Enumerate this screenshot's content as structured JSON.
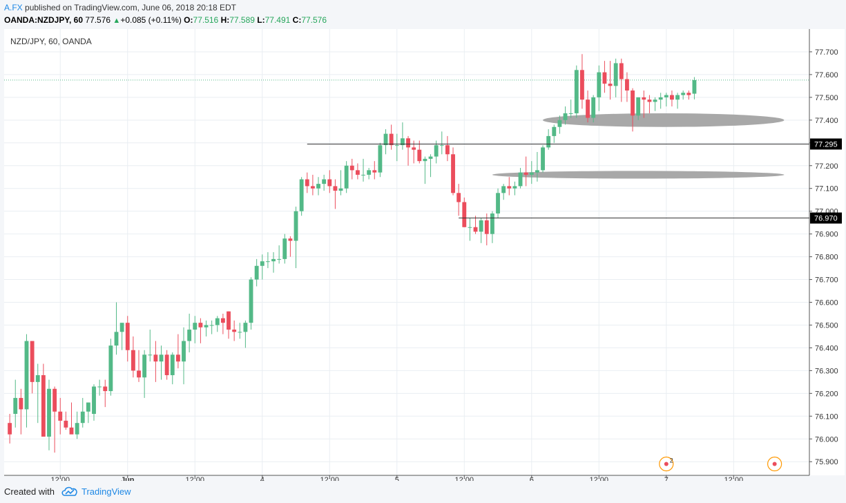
{
  "header": {
    "author": "A.FX",
    "published_text": "published on TradingView.com, June 06, 2018 20:18 EDT",
    "symbol": "OANDA:NZDJPY, 60",
    "last": "77.576",
    "up_icon": "triangle-up",
    "change": "+0.085 (+0.11%)",
    "o_label": "O:",
    "o_value": "77.516",
    "h_label": "H:",
    "h_value": "77.589",
    "l_label": "L:",
    "l_value": "77.491",
    "c_label": "C:",
    "c_value": "77.576"
  },
  "footer": {
    "created_with": "Created with",
    "brand": "TradingView",
    "logo_icon": "tradingview-cloud-icon"
  },
  "colors": {
    "up": "#53b987",
    "down": "#eb4d5c",
    "grid": "#e9eef2",
    "hline": "#333333",
    "zone": "#a8a8a8",
    "last_line": "#53b987",
    "marker": "#ff9800"
  },
  "chart_data": {
    "type": "candlestick",
    "title": "NZD/JPY, 60, OANDA",
    "ylim": [
      75.84,
      77.8
    ],
    "y_ticks": [
      75.9,
      76.0,
      76.1,
      76.2,
      76.3,
      76.4,
      76.5,
      76.6,
      76.7,
      76.8,
      76.9,
      77.0,
      77.1,
      77.2,
      77.3,
      77.4,
      77.5,
      77.6,
      77.7
    ],
    "y_tick_labels": [
      "75.900",
      "76.000",
      "76.100",
      "76.200",
      "76.300",
      "76.400",
      "76.500",
      "76.600",
      "76.700",
      "76.800",
      "76.900",
      "77.000",
      "77.100",
      "77.200",
      "77.300",
      "77.400",
      "77.500",
      "77.600",
      "77.700"
    ],
    "x_range": [
      -1,
      142.5
    ],
    "x_ticks": [
      {
        "i": 9,
        "label": "12:00",
        "bold": false
      },
      {
        "i": 21,
        "label": "Jun",
        "bold": true
      },
      {
        "i": 33,
        "label": "12:00",
        "bold": false
      },
      {
        "i": 45,
        "label": "4",
        "bold": false
      },
      {
        "i": 57,
        "label": "12:00",
        "bold": false
      },
      {
        "i": 69,
        "label": "5",
        "bold": false
      },
      {
        "i": 81,
        "label": "12:00",
        "bold": false
      },
      {
        "i": 93,
        "label": "6",
        "bold": false
      },
      {
        "i": 105,
        "label": "12:00",
        "bold": false
      },
      {
        "i": 117,
        "label": "7",
        "bold": false
      },
      {
        "i": 129,
        "label": "12:00",
        "bold": false
      }
    ],
    "candles": [
      [
        76.07,
        76.11,
        75.98,
        76.02
      ],
      [
        76.11,
        76.26,
        76.05,
        76.18
      ],
      [
        76.18,
        76.22,
        76.02,
        76.13
      ],
      [
        76.13,
        76.46,
        76.05,
        76.43
      ],
      [
        76.43,
        76.43,
        76.2,
        76.25
      ],
      [
        76.25,
        76.33,
        76.07,
        76.28
      ],
      [
        76.28,
        76.33,
        76.02,
        76.01
      ],
      [
        76.01,
        76.26,
        75.95,
        76.22
      ],
      [
        76.22,
        76.23,
        75.94,
        76.12
      ],
      [
        76.12,
        76.18,
        76.02,
        76.08
      ],
      [
        76.08,
        76.12,
        76.04,
        76.05
      ],
      [
        76.05,
        76.16,
        76.03,
        76.02
      ],
      [
        76.02,
        76.12,
        76.0,
        76.07
      ],
      [
        76.07,
        76.18,
        76.05,
        76.12
      ],
      [
        76.12,
        76.16,
        76.07,
        76.16
      ],
      [
        76.11,
        76.24,
        76.08,
        76.23
      ],
      [
        76.23,
        76.26,
        76.19,
        76.23
      ],
      [
        76.23,
        76.26,
        76.14,
        76.21
      ],
      [
        76.21,
        76.44,
        76.19,
        76.41
      ],
      [
        76.41,
        76.6,
        76.37,
        76.47
      ],
      [
        76.47,
        76.5,
        76.39,
        76.51
      ],
      [
        76.51,
        76.54,
        76.34,
        76.39
      ],
      [
        76.39,
        76.45,
        76.27,
        76.3
      ],
      [
        76.3,
        76.39,
        76.25,
        76.27
      ],
      [
        76.27,
        76.39,
        76.18,
        76.37
      ],
      [
        76.37,
        76.48,
        76.34,
        76.37
      ],
      [
        76.37,
        76.43,
        76.25,
        76.34
      ],
      [
        76.34,
        76.41,
        76.26,
        76.37
      ],
      [
        76.37,
        76.39,
        76.26,
        76.28
      ],
      [
        76.28,
        76.38,
        76.24,
        76.37
      ],
      [
        76.37,
        76.46,
        76.31,
        76.34
      ],
      [
        76.34,
        76.49,
        76.24,
        76.43
      ],
      [
        76.43,
        76.55,
        76.38,
        76.48
      ],
      [
        76.48,
        76.54,
        76.42,
        76.51
      ],
      [
        76.51,
        76.53,
        76.42,
        76.49
      ],
      [
        76.49,
        76.52,
        76.45,
        76.5
      ],
      [
        76.5,
        76.52,
        76.46,
        76.5
      ],
      [
        76.5,
        76.54,
        76.47,
        76.53
      ],
      [
        76.53,
        76.55,
        76.46,
        76.51
      ],
      [
        76.56,
        76.56,
        76.44,
        76.48
      ],
      [
        76.48,
        76.52,
        76.43,
        76.47
      ],
      [
        76.47,
        76.51,
        76.44,
        76.47
      ],
      [
        76.47,
        76.52,
        76.4,
        76.51
      ],
      [
        76.51,
        76.71,
        76.48,
        76.7
      ],
      [
        76.7,
        76.79,
        76.67,
        76.76
      ],
      [
        76.76,
        76.81,
        76.7,
        76.78
      ],
      [
        76.78,
        76.82,
        76.75,
        76.78
      ],
      [
        76.78,
        76.82,
        76.73,
        76.79
      ],
      [
        76.79,
        76.85,
        76.77,
        76.79
      ],
      [
        76.79,
        76.9,
        76.77,
        76.88
      ],
      [
        76.88,
        76.89,
        76.8,
        76.87
      ],
      [
        76.87,
        77.02,
        76.75,
        77.0
      ],
      [
        77.0,
        77.15,
        76.98,
        77.14
      ],
      [
        77.14,
        77.17,
        77.08,
        77.11
      ],
      [
        77.11,
        77.16,
        77.07,
        77.1
      ],
      [
        77.1,
        77.15,
        77.07,
        77.12
      ],
      [
        77.12,
        77.16,
        77.09,
        77.14
      ],
      [
        77.14,
        77.18,
        77.08,
        77.11
      ],
      [
        77.11,
        77.14,
        77.01,
        77.09
      ],
      [
        77.09,
        77.18,
        77.07,
        77.1
      ],
      [
        77.1,
        77.22,
        77.08,
        77.2
      ],
      [
        77.2,
        77.23,
        77.14,
        77.18
      ],
      [
        77.18,
        77.21,
        77.14,
        77.16
      ],
      [
        77.16,
        77.23,
        77.13,
        77.16
      ],
      [
        77.16,
        77.19,
        77.14,
        77.18
      ],
      [
        77.18,
        77.22,
        77.14,
        77.17
      ],
      [
        77.17,
        77.3,
        77.15,
        77.29
      ],
      [
        77.29,
        77.36,
        77.25,
        77.34
      ],
      [
        77.34,
        77.38,
        77.27,
        77.29
      ],
      [
        77.29,
        77.34,
        77.22,
        77.29
      ],
      [
        77.29,
        77.39,
        77.27,
        77.32
      ],
      [
        77.32,
        77.33,
        77.2,
        77.28
      ],
      [
        77.28,
        77.31,
        77.21,
        77.27
      ],
      [
        77.27,
        77.31,
        77.21,
        77.22
      ],
      [
        77.22,
        77.24,
        77.12,
        77.23
      ],
      [
        77.23,
        77.25,
        77.15,
        77.24
      ],
      [
        77.24,
        77.31,
        77.21,
        77.29
      ],
      [
        77.29,
        77.35,
        77.25,
        77.29
      ],
      [
        77.29,
        77.33,
        77.22,
        77.25
      ],
      [
        77.25,
        77.28,
        77.07,
        77.08
      ],
      [
        77.08,
        77.12,
        76.98,
        77.04
      ],
      [
        77.04,
        77.06,
        76.93,
        76.93
      ],
      [
        76.93,
        76.97,
        76.87,
        76.93
      ],
      [
        76.93,
        76.98,
        76.9,
        76.91
      ],
      [
        76.91,
        76.97,
        76.86,
        76.96
      ],
      [
        76.96,
        76.99,
        76.85,
        76.9
      ],
      [
        76.9,
        77.0,
        76.86,
        76.99
      ],
      [
        76.99,
        77.1,
        76.97,
        77.08
      ],
      [
        77.08,
        77.12,
        77.05,
        77.11
      ],
      [
        77.11,
        77.15,
        77.07,
        77.1
      ],
      [
        77.1,
        77.13,
        77.07,
        77.11
      ],
      [
        77.11,
        77.19,
        77.1,
        77.17
      ],
      [
        77.17,
        77.24,
        77.11,
        77.16
      ],
      [
        77.16,
        77.22,
        77.12,
        77.17
      ],
      [
        77.17,
        77.26,
        77.13,
        77.18
      ],
      [
        77.18,
        77.29,
        77.17,
        77.28
      ],
      [
        77.28,
        77.36,
        77.27,
        77.33
      ],
      [
        77.33,
        77.38,
        77.3,
        77.37
      ],
      [
        77.37,
        77.42,
        77.34,
        77.4
      ],
      [
        77.4,
        77.46,
        77.38,
        77.43
      ],
      [
        77.43,
        77.49,
        77.41,
        77.43
      ],
      [
        77.43,
        77.64,
        77.41,
        77.62
      ],
      [
        77.62,
        77.69,
        77.45,
        77.49
      ],
      [
        77.49,
        77.53,
        77.39,
        77.41
      ],
      [
        77.41,
        77.51,
        77.39,
        77.5
      ],
      [
        77.5,
        77.64,
        77.44,
        77.61
      ],
      [
        77.61,
        77.66,
        77.52,
        77.56
      ],
      [
        77.56,
        77.66,
        77.49,
        77.55
      ],
      [
        77.55,
        77.67,
        77.5,
        77.65
      ],
      [
        77.65,
        77.67,
        77.48,
        77.58
      ],
      [
        77.58,
        77.61,
        77.48,
        77.53
      ],
      [
        77.53,
        77.54,
        77.35,
        77.42
      ],
      [
        77.42,
        77.5,
        77.4,
        77.5
      ],
      [
        77.5,
        77.53,
        77.41,
        77.49
      ],
      [
        77.49,
        77.51,
        77.43,
        77.48
      ],
      [
        77.48,
        77.5,
        77.44,
        77.49
      ],
      [
        77.49,
        77.52,
        77.45,
        77.5
      ],
      [
        77.5,
        77.52,
        77.46,
        77.51
      ],
      [
        77.51,
        77.53,
        77.46,
        77.49
      ],
      [
        77.49,
        77.52,
        77.45,
        77.51
      ],
      [
        77.51,
        77.53,
        77.49,
        77.52
      ],
      [
        77.52,
        77.53,
        77.49,
        77.51
      ],
      [
        77.516,
        77.589,
        77.491,
        77.576
      ]
    ],
    "hlines": [
      {
        "value": 77.295,
        "label": "77.295",
        "from_index": 53
      },
      {
        "value": 76.97,
        "label": "76.970",
        "from_index": 80
      }
    ],
    "zones": [
      {
        "x_from_index": 95,
        "x_to_index": 138,
        "y_value": 77.4,
        "half_height": 0.03
      },
      {
        "x_from_index": 86,
        "x_to_index": 138,
        "y_value": 77.16,
        "half_height": 0.017
      }
    ],
    "last_price": 77.576,
    "event_markers": [
      {
        "index": 117,
        "y_value": 75.89,
        "count": "2"
      },
      {
        "index": 136.3,
        "y_value": 75.89,
        "count": ""
      }
    ]
  }
}
